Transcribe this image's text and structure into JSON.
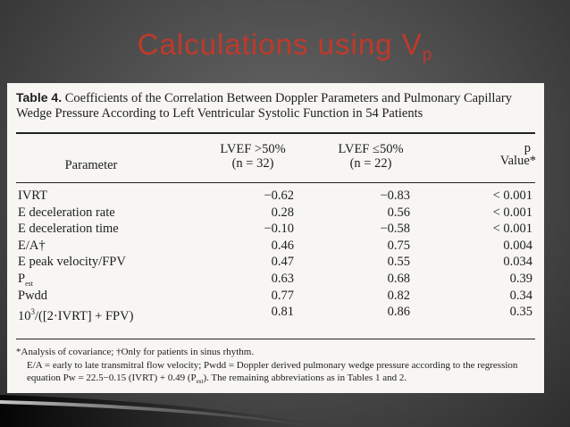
{
  "slide": {
    "title_main": "Calculations using V",
    "title_sub": "p"
  },
  "table": {
    "caption_label": "Table 4.",
    "caption_text": "Coefficients of the Correlation Between Doppler Parameters and Pulmonary Capillary Wedge Pressure According to Left Ventricular Systolic Function in 54 Patients",
    "headers": {
      "parameter": "Parameter",
      "col1_line1": "LVEF >50%",
      "col1_line2": "(n = 32)",
      "col2_line1": "LVEF ≤50%",
      "col2_line2": "(n = 22)",
      "col3_line1": "p",
      "col3_line2": "Value*"
    },
    "rows": [
      {
        "param": "IVRT",
        "v1": "−0.62",
        "v2": "−0.83",
        "p": "< 0.001"
      },
      {
        "param": "E deceleration rate",
        "v1": "0.28",
        "v2": "0.56",
        "p": "< 0.001"
      },
      {
        "param": "E deceleration time",
        "v1": "−0.10",
        "v2": "−0.58",
        "p": "< 0.001"
      },
      {
        "param": "E/A†",
        "v1": "0.46",
        "v2": "0.75",
        "p": "0.004"
      },
      {
        "param": "E peak velocity/FPV",
        "v1": "0.47",
        "v2": "0.55",
        "p": "0.034"
      },
      {
        "param": "P",
        "param_sub": "est",
        "v1": "0.63",
        "v2": "0.68",
        "p": "0.39"
      },
      {
        "param": "Pwdd",
        "v1": "0.77",
        "v2": "0.82",
        "p": "0.34"
      },
      {
        "param": "10",
        "param_sup": "3",
        "param_rest": "/([2·IVRT] + FPV)",
        "v1": "0.81",
        "v2": "0.86",
        "p": "0.35"
      }
    ],
    "footnote_1": "*Analysis of covariance; †Only for patients in sinus rhythm.",
    "footnote_2": "E/A = early to late transmitral flow velocity; Pwdd = Doppler derived pulmonary wedge pressure according to the regression equation Pw = 22.5−0.15 (IVRT) + 0.49 (P",
    "footnote_2_sub": "est",
    "footnote_2_end": "). The remaining abbreviations as in Tables 1 and 2."
  }
}
